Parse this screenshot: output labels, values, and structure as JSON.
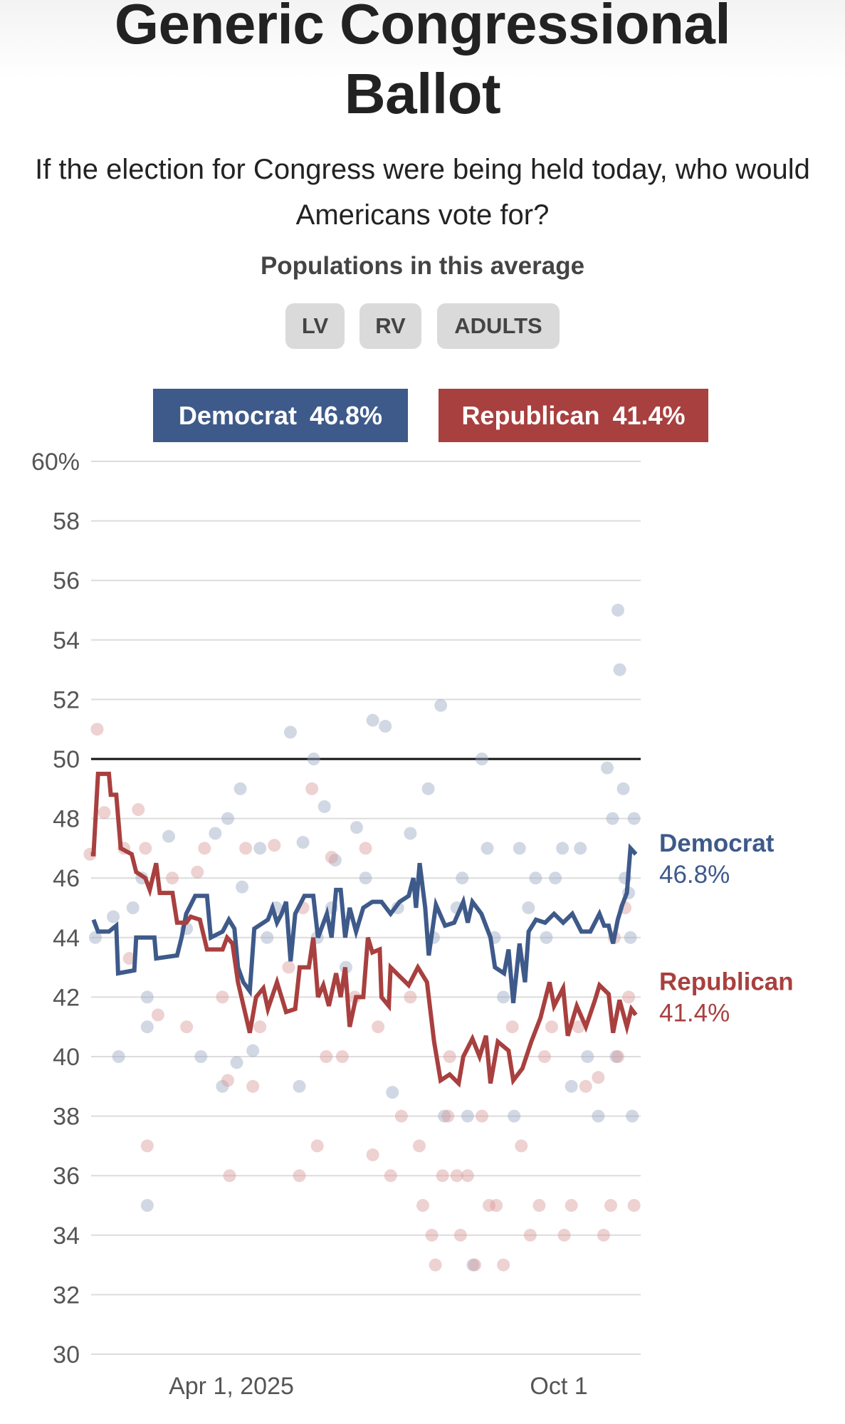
{
  "header": {
    "title_line1": "Generic Congressional",
    "title_line2": "Ballot",
    "subtitle": "If the election for Congress were being held today, who would Americans vote for?",
    "populations_label": "Populations in this average",
    "populations": [
      "LV",
      "RV",
      "ADULTS"
    ]
  },
  "colors": {
    "democrat": "#3e5a8a",
    "republican": "#a8403f",
    "democrat_dot": "#9aa9c4",
    "republican_dot": "#d99a9a"
  },
  "legend": [
    {
      "name": "Democrat",
      "value": "46.8%"
    },
    {
      "name": "Republican",
      "value": "41.4%"
    }
  ],
  "chart_data": {
    "type": "line",
    "title": "Generic Congressional Ballot",
    "x_unit": "days since Apr 1, 2025",
    "x_range": [
      -80,
      228
    ],
    "ylim": [
      30,
      60
    ],
    "yticks": [
      {
        "value": 60,
        "label": "60%"
      },
      {
        "value": 58,
        "label": "58"
      },
      {
        "value": 56,
        "label": "56"
      },
      {
        "value": 54,
        "label": "54"
      },
      {
        "value": 52,
        "label": "52"
      },
      {
        "value": 50,
        "label": "50"
      },
      {
        "value": 48,
        "label": "48"
      },
      {
        "value": 46,
        "label": "46"
      },
      {
        "value": 44,
        "label": "44"
      },
      {
        "value": 42,
        "label": "42"
      },
      {
        "value": 40,
        "label": "40"
      },
      {
        "value": 38,
        "label": "38"
      },
      {
        "value": 36,
        "label": "36"
      },
      {
        "value": 34,
        "label": "34"
      },
      {
        "value": 32,
        "label": "32"
      },
      {
        "value": 30,
        "label": "30"
      }
    ],
    "xticks": [
      {
        "value": 0,
        "label": "Apr 1, 2025"
      },
      {
        "value": 183,
        "label": "Oct 1"
      }
    ],
    "reference_line": 50,
    "grid": true,
    "series": [
      {
        "name": "Democrat",
        "end_label": "Democrat",
        "end_value": "46.8%",
        "points": [
          [
            -77,
            44.6
          ],
          [
            -74.5,
            44.2
          ],
          [
            -68.4,
            44.2
          ],
          [
            -64.3,
            44.4
          ],
          [
            -63.3,
            42.8
          ],
          [
            -54.2,
            42.9
          ],
          [
            -53.2,
            44
          ],
          [
            -45.6,
            44
          ],
          [
            -43,
            44
          ],
          [
            -42,
            43.3
          ],
          [
            -30.3,
            43.4
          ],
          [
            -27.8,
            44
          ],
          [
            -25.2,
            44.8
          ],
          [
            -20.2,
            45.4
          ],
          [
            -13.6,
            45.4
          ],
          [
            -11.5,
            44
          ],
          [
            -4.9,
            44.2
          ],
          [
            -1.4,
            44.6
          ],
          [
            1.7,
            44.3
          ],
          [
            3.7,
            43
          ],
          [
            6.7,
            42.5
          ],
          [
            10.3,
            42.2
          ],
          [
            12.8,
            44.3
          ],
          [
            17.9,
            44.5
          ],
          [
            20.4,
            44.6
          ],
          [
            23,
            45
          ],
          [
            25.5,
            44.5
          ],
          [
            28.1,
            44.8
          ],
          [
            30.6,
            45.2
          ],
          [
            33.1,
            43.2
          ],
          [
            35.7,
            44.8
          ],
          [
            40.8,
            45.4
          ],
          [
            45.8,
            45.4
          ],
          [
            48.4,
            44
          ],
          [
            50.9,
            44.4
          ],
          [
            53.4,
            44.8
          ],
          [
            56,
            44
          ],
          [
            58.5,
            45.6
          ],
          [
            61.1,
            45.6
          ],
          [
            63.6,
            44
          ],
          [
            66.1,
            45
          ],
          [
            69.7,
            44.2
          ],
          [
            73.7,
            45
          ],
          [
            78.8,
            45.2
          ],
          [
            83.9,
            45.2
          ],
          [
            89,
            44.8
          ],
          [
            94,
            45.2
          ],
          [
            99.1,
            45.4
          ],
          [
            101.7,
            46
          ],
          [
            103.2,
            45
          ],
          [
            105.2,
            46.5
          ],
          [
            108.3,
            45
          ],
          [
            110.3,
            43.4
          ],
          [
            114.3,
            45.1
          ],
          [
            119.4,
            44.4
          ],
          [
            124.5,
            44.5
          ],
          [
            129.6,
            45.2
          ],
          [
            132.1,
            44.5
          ],
          [
            134.7,
            45.2
          ],
          [
            139.7,
            44.8
          ],
          [
            144.8,
            44
          ],
          [
            147.3,
            43
          ],
          [
            152.4,
            42.8
          ],
          [
            154.9,
            43.6
          ],
          [
            157.5,
            41.8
          ],
          [
            161,
            43.8
          ],
          [
            164.1,
            42.5
          ],
          [
            166.1,
            44.2
          ],
          [
            170.2,
            44.6
          ],
          [
            175.3,
            44.5
          ],
          [
            180.3,
            44.8
          ],
          [
            185.4,
            44.5
          ],
          [
            190.5,
            44.8
          ],
          [
            195.6,
            44.2
          ],
          [
            200.6,
            44.2
          ],
          [
            205.7,
            44.8
          ],
          [
            208.3,
            44.4
          ],
          [
            210.8,
            44.4
          ],
          [
            213.3,
            43.8
          ],
          [
            215.9,
            44.6
          ],
          [
            218.4,
            45.1
          ],
          [
            221,
            45.5
          ],
          [
            223,
            47
          ],
          [
            226,
            46.8
          ]
        ]
      },
      {
        "name": "Republican",
        "end_label": "Republican",
        "end_value": "41.4%",
        "points": [
          [
            -78.5,
            46.8
          ],
          [
            -77,
            46.8
          ],
          [
            -74.5,
            49.5
          ],
          [
            -68.4,
            49.5
          ],
          [
            -67.4,
            48.8
          ],
          [
            -64.3,
            48.8
          ],
          [
            -61.8,
            47
          ],
          [
            -55.7,
            46.8
          ],
          [
            -53.2,
            46.2
          ],
          [
            -48.1,
            46
          ],
          [
            -45.6,
            45.6
          ],
          [
            -42,
            46.5
          ],
          [
            -40,
            45.5
          ],
          [
            -32.9,
            45.5
          ],
          [
            -30.3,
            44.5
          ],
          [
            -25.2,
            44.5
          ],
          [
            -22.7,
            44.7
          ],
          [
            -17.6,
            44.6
          ],
          [
            -13.6,
            43.6
          ],
          [
            -4.9,
            43.6
          ],
          [
            -2.4,
            44
          ],
          [
            0.6,
            43.8
          ],
          [
            3.7,
            42.5
          ],
          [
            10.3,
            40.8
          ],
          [
            13.8,
            42
          ],
          [
            17.9,
            42.3
          ],
          [
            20.4,
            41.6
          ],
          [
            25.5,
            42.5
          ],
          [
            30.6,
            41.5
          ],
          [
            35.7,
            41.6
          ],
          [
            38.2,
            43
          ],
          [
            43.3,
            43
          ],
          [
            45.8,
            44
          ],
          [
            48.4,
            42
          ],
          [
            51.4,
            42.4
          ],
          [
            54.5,
            41.7
          ],
          [
            58.5,
            42.8
          ],
          [
            61.1,
            42
          ],
          [
            63.6,
            43
          ],
          [
            66.1,
            41
          ],
          [
            69.7,
            42
          ],
          [
            73.7,
            42
          ],
          [
            76.3,
            44
          ],
          [
            78.8,
            43.5
          ],
          [
            82.9,
            43.6
          ],
          [
            83.9,
            42
          ],
          [
            88,
            41.7
          ],
          [
            89,
            43
          ],
          [
            94,
            42.7
          ],
          [
            99.1,
            42.4
          ],
          [
            104.2,
            43
          ],
          [
            109.3,
            42.5
          ],
          [
            113.3,
            40.5
          ],
          [
            116.9,
            39.2
          ],
          [
            122,
            39.4
          ],
          [
            127,
            39.1
          ],
          [
            129.6,
            40
          ],
          [
            134.7,
            40.6
          ],
          [
            138.7,
            40
          ],
          [
            142.3,
            40.7
          ],
          [
            144.8,
            39.1
          ],
          [
            148.9,
            40.5
          ],
          [
            154.9,
            40.2
          ],
          [
            157.5,
            39.2
          ],
          [
            162.6,
            39.6
          ],
          [
            167.6,
            40.5
          ],
          [
            172.7,
            41.3
          ],
          [
            177.8,
            42.5
          ],
          [
            180.3,
            41.7
          ],
          [
            185.4,
            42.3
          ],
          [
            188,
            40.7
          ],
          [
            193,
            41.7
          ],
          [
            198.1,
            41
          ],
          [
            203.2,
            41.9
          ],
          [
            205.7,
            42.4
          ],
          [
            210.8,
            42.1
          ],
          [
            213.3,
            40.8
          ],
          [
            216.9,
            41.9
          ],
          [
            221,
            41
          ],
          [
            223.5,
            41.6
          ],
          [
            226,
            41.4
          ]
        ]
      }
    ],
    "polls": {
      "Democrat": [
        [
          -76,
          44
        ],
        [
          -66,
          44.7
        ],
        [
          -63,
          40
        ],
        [
          -55,
          45
        ],
        [
          -50,
          46
        ],
        [
          -47,
          42
        ],
        [
          -47,
          35
        ],
        [
          -47,
          41
        ],
        [
          -35,
          47.4
        ],
        [
          -25,
          44.3
        ],
        [
          -17,
          40
        ],
        [
          -9,
          47.5
        ],
        [
          -5,
          39
        ],
        [
          -2,
          48
        ],
        [
          3,
          39.8
        ],
        [
          6,
          45.7
        ],
        [
          5,
          49
        ],
        [
          12,
          40.2
        ],
        [
          16,
          47
        ],
        [
          20,
          44
        ],
        [
          25,
          45
        ],
        [
          33,
          50.9
        ],
        [
          38,
          39
        ],
        [
          40,
          47.2
        ],
        [
          46,
          50
        ],
        [
          48,
          44
        ],
        [
          52,
          48.4
        ],
        [
          56,
          45
        ],
        [
          58,
          46.6
        ],
        [
          64,
          43
        ],
        [
          70,
          47.7
        ],
        [
          75,
          46
        ],
        [
          79,
          51.3
        ],
        [
          86,
          51.1
        ],
        [
          90,
          38.8
        ],
        [
          93,
          45
        ],
        [
          100,
          47.5
        ],
        [
          110,
          49
        ],
        [
          113,
          44
        ],
        [
          117,
          51.8
        ],
        [
          119,
          38
        ],
        [
          126,
          45
        ],
        [
          129,
          46
        ],
        [
          132,
          38
        ],
        [
          135,
          33
        ],
        [
          140,
          50
        ],
        [
          143,
          47
        ],
        [
          147,
          44
        ],
        [
          152,
          42
        ],
        [
          158,
          38
        ],
        [
          161,
          47
        ],
        [
          166,
          45
        ],
        [
          170,
          46
        ],
        [
          176,
          44
        ],
        [
          181,
          46
        ],
        [
          185,
          47
        ],
        [
          190,
          39
        ],
        [
          195,
          47
        ],
        [
          199,
          40
        ],
        [
          205,
          38
        ],
        [
          210,
          49.7
        ],
        [
          213,
          48
        ],
        [
          215,
          40
        ],
        [
          216,
          55
        ],
        [
          217,
          53
        ],
        [
          219,
          49
        ],
        [
          220,
          46
        ],
        [
          222,
          45.5
        ],
        [
          223,
          44
        ],
        [
          224,
          38
        ],
        [
          225,
          48
        ]
      ],
      "Republican": [
        [
          -79,
          46.8
        ],
        [
          -75,
          51
        ],
        [
          -71,
          48.2
        ],
        [
          -60,
          47
        ],
        [
          -57,
          43.3
        ],
        [
          -52,
          48.3
        ],
        [
          -48,
          47
        ],
        [
          -47,
          37
        ],
        [
          -41,
          41.4
        ],
        [
          -33,
          46
        ],
        [
          -25,
          41
        ],
        [
          -19,
          46.2
        ],
        [
          -15,
          47
        ],
        [
          -5,
          42
        ],
        [
          -2,
          39.2
        ],
        [
          -1,
          36
        ],
        [
          8,
          47
        ],
        [
          12,
          39
        ],
        [
          16,
          41
        ],
        [
          24,
          47.1
        ],
        [
          32,
          43
        ],
        [
          38,
          36
        ],
        [
          40,
          45
        ],
        [
          45,
          49
        ],
        [
          48,
          37
        ],
        [
          53,
          40
        ],
        [
          56,
          46.7
        ],
        [
          62,
          40
        ],
        [
          69,
          42
        ],
        [
          75,
          47
        ],
        [
          79,
          36.7
        ],
        [
          82,
          41
        ],
        [
          89,
          36
        ],
        [
          95,
          38
        ],
        [
          100,
          42
        ],
        [
          105,
          37
        ],
        [
          107,
          35
        ],
        [
          112,
          34
        ],
        [
          114,
          33
        ],
        [
          118,
          36
        ],
        [
          121,
          38
        ],
        [
          122,
          40
        ],
        [
          126,
          36
        ],
        [
          128,
          34
        ],
        [
          132,
          36
        ],
        [
          136,
          33
        ],
        [
          140,
          38
        ],
        [
          144,
          35
        ],
        [
          148,
          35
        ],
        [
          152,
          33
        ],
        [
          157,
          41
        ],
        [
          162,
          37
        ],
        [
          167,
          34
        ],
        [
          172,
          35
        ],
        [
          175,
          40
        ],
        [
          179,
          41
        ],
        [
          186,
          34
        ],
        [
          190,
          35
        ],
        [
          194,
          41
        ],
        [
          198,
          39
        ],
        [
          205,
          39.3
        ],
        [
          208,
          34
        ],
        [
          212,
          35
        ],
        [
          214,
          44
        ],
        [
          216,
          40
        ],
        [
          220,
          45
        ],
        [
          222,
          42
        ],
        [
          225,
          35
        ]
      ]
    }
  }
}
